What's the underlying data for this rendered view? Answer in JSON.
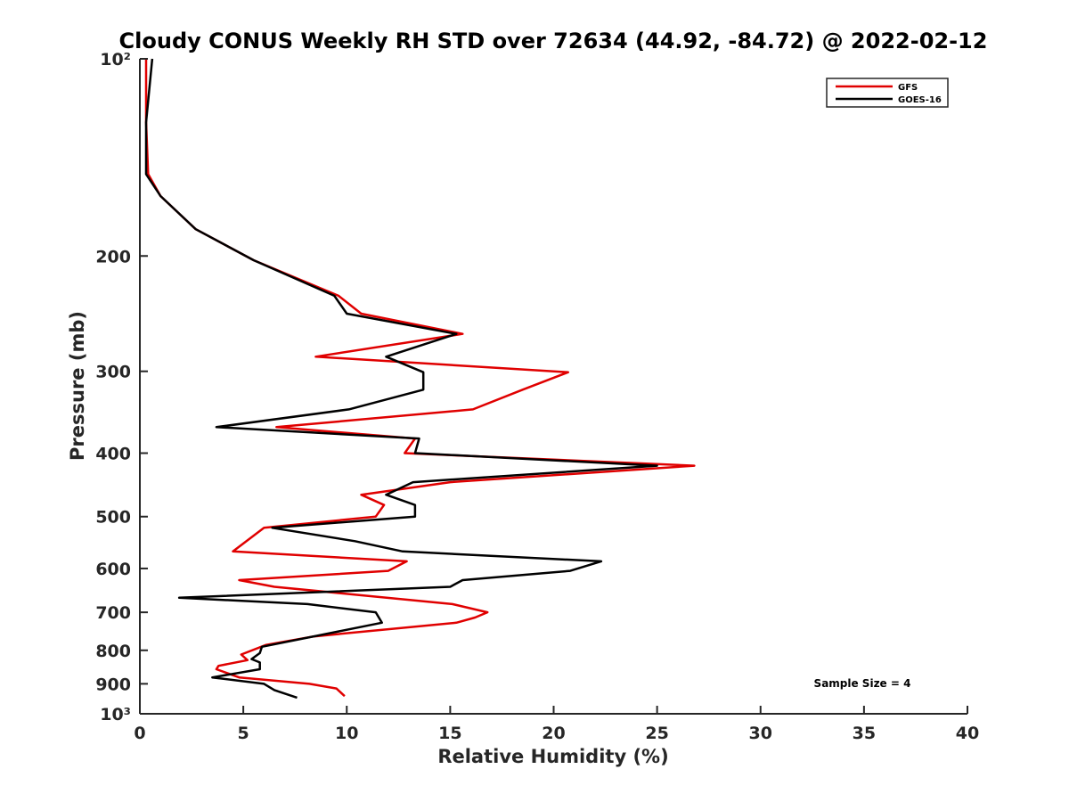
{
  "chart_data": {
    "type": "line",
    "title": "Cloudy CONUS Weekly RH STD over 72634 (44.92, -84.72) @ 2022-02-12",
    "xlabel": "Relative Humidity (%)",
    "ylabel": "Pressure (mb)",
    "xlim": [
      0,
      40
    ],
    "ylim": [
      100,
      1000
    ],
    "yscale": "log",
    "y_reversed": true,
    "x_ticks": [
      0,
      5,
      10,
      15,
      20,
      25,
      30,
      35,
      40
    ],
    "x_tick_labels": [
      "0",
      "5",
      "10",
      "15",
      "20",
      "25",
      "30",
      "35",
      "40"
    ],
    "y_ticks": [
      100,
      200,
      300,
      400,
      500,
      600,
      700,
      800,
      900,
      1000
    ],
    "y_tick_labels": [
      "10²",
      "200",
      "300",
      "400",
      "500",
      "600",
      "700",
      "800",
      "900",
      "10³"
    ],
    "grid": false,
    "legend_position": "top-right",
    "annotation": "Sample Size = 4",
    "series": [
      {
        "name": "GFS",
        "color": "#e00000",
        "points": [
          [
            0.3,
            100
          ],
          [
            0.3,
            125
          ],
          [
            0.4,
            150
          ],
          [
            1.0,
            162
          ],
          [
            2.7,
            182
          ],
          [
            5.5,
            203
          ],
          [
            9.6,
            230
          ],
          [
            10.7,
            245
          ],
          [
            15.6,
            263
          ],
          [
            8.5,
            285
          ],
          [
            20.7,
            301
          ],
          [
            18.5,
            320
          ],
          [
            16.1,
            343
          ],
          [
            6.6,
            365
          ],
          [
            13.3,
            380
          ],
          [
            12.8,
            400
          ],
          [
            26.8,
            418
          ],
          [
            15.0,
            443
          ],
          [
            10.7,
            463
          ],
          [
            11.8,
            480
          ],
          [
            11.4,
            500
          ],
          [
            6.0,
            520
          ],
          [
            4.5,
            565
          ],
          [
            12.9,
            585
          ],
          [
            12.0,
            605
          ],
          [
            4.8,
            625
          ],
          [
            6.5,
            640
          ],
          [
            15.1,
            680
          ],
          [
            16.8,
            700
          ],
          [
            16.2,
            713
          ],
          [
            15.3,
            726
          ],
          [
            8.4,
            762
          ],
          [
            6.1,
            785
          ],
          [
            4.9,
            812
          ],
          [
            5.2,
            828
          ],
          [
            3.8,
            845
          ],
          [
            3.7,
            855
          ],
          [
            4.8,
            880
          ],
          [
            8.2,
            900
          ],
          [
            9.5,
            915
          ],
          [
            9.9,
            940
          ]
        ]
      },
      {
        "name": "GOES-16",
        "color": "#000000",
        "points": [
          [
            0.6,
            100
          ],
          [
            0.3,
            125
          ],
          [
            0.3,
            150
          ],
          [
            1.0,
            162
          ],
          [
            2.7,
            182
          ],
          [
            5.5,
            203
          ],
          [
            9.4,
            230
          ],
          [
            10.0,
            245
          ],
          [
            15.3,
            263
          ],
          [
            11.9,
            285
          ],
          [
            13.7,
            301
          ],
          [
            13.7,
            320
          ],
          [
            10.1,
            343
          ],
          [
            3.7,
            365
          ],
          [
            13.5,
            380
          ],
          [
            13.3,
            400
          ],
          [
            25.0,
            418
          ],
          [
            13.2,
            443
          ],
          [
            11.9,
            463
          ],
          [
            13.3,
            480
          ],
          [
            13.3,
            500
          ],
          [
            6.4,
            520
          ],
          [
            10.4,
            545
          ],
          [
            12.7,
            565
          ],
          [
            22.3,
            585
          ],
          [
            20.8,
            605
          ],
          [
            15.6,
            625
          ],
          [
            15.0,
            640
          ],
          [
            1.9,
            665
          ],
          [
            8.1,
            680
          ],
          [
            11.4,
            700
          ],
          [
            11.7,
            726
          ],
          [
            9.3,
            752
          ],
          [
            5.9,
            790
          ],
          [
            5.8,
            808
          ],
          [
            5.4,
            825
          ],
          [
            5.8,
            835
          ],
          [
            5.8,
            855
          ],
          [
            3.5,
            880
          ],
          [
            6.0,
            900
          ],
          [
            6.5,
            920
          ],
          [
            7.6,
            945
          ]
        ]
      }
    ]
  }
}
